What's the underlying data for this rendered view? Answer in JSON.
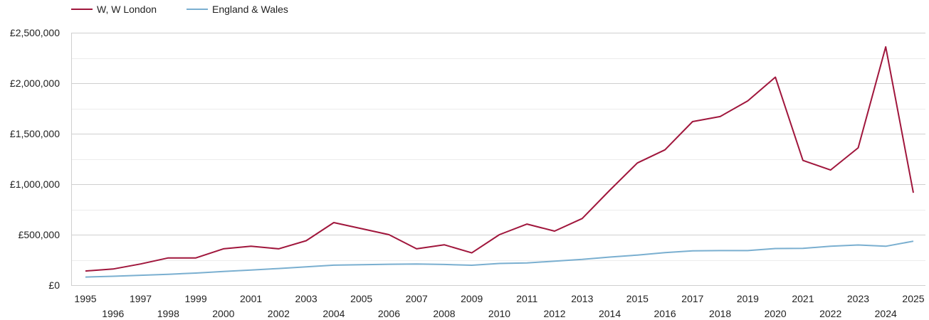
{
  "chart_data": {
    "type": "line",
    "title": "",
    "xlabel": "",
    "ylabel": "",
    "grid": true,
    "legend_position": "top-left",
    "x": [
      1995,
      1996,
      1997,
      1998,
      1999,
      2000,
      2001,
      2002,
      2003,
      2004,
      2005,
      2006,
      2007,
      2008,
      2009,
      2010,
      2011,
      2012,
      2013,
      2014,
      2015,
      2016,
      2017,
      2018,
      2019,
      2020,
      2021,
      2022,
      2023,
      2024,
      2025
    ],
    "x_tick_labels": [
      "1995",
      "1996",
      "1997",
      "1998",
      "1999",
      "2000",
      "2001",
      "2002",
      "2003",
      "2004",
      "2005",
      "2006",
      "2007",
      "2008",
      "2009",
      "2010",
      "2011",
      "2012",
      "2013",
      "2014",
      "2015",
      "2016",
      "2017",
      "2018",
      "2019",
      "2020",
      "2021",
      "2022",
      "2023",
      "2024",
      "2025"
    ],
    "xlim": [
      1995,
      2025
    ],
    "ylim": [
      0,
      2500000
    ],
    "y_ticks": [
      0,
      500000,
      1000000,
      1500000,
      2000000,
      2500000
    ],
    "y_tick_labels": [
      "£0",
      "£500,000",
      "£1,000,000",
      "£1,500,000",
      "£2,000,000",
      "£2,500,000"
    ],
    "series": [
      {
        "name": "W, W London",
        "color": "#a0163c",
        "values": [
          140000,
          160000,
          210000,
          270000,
          270000,
          360000,
          385000,
          360000,
          440000,
          620000,
          560000,
          500000,
          360000,
          400000,
          320000,
          500000,
          605000,
          535000,
          660000,
          940000,
          1210000,
          1340000,
          1620000,
          1670000,
          1825000,
          2060000,
          1235000,
          1140000,
          1360000,
          2360000,
          915000
        ]
      },
      {
        "name": "England & Wales",
        "color": "#7aafd0",
        "values": [
          80000,
          88000,
          98000,
          108000,
          120000,
          135000,
          150000,
          165000,
          182000,
          198000,
          203000,
          207000,
          210000,
          205000,
          197000,
          215000,
          220000,
          238000,
          255000,
          278000,
          298000,
          322000,
          340000,
          342000,
          342000,
          363000,
          365000,
          385000,
          398000,
          385000,
          435000
        ]
      }
    ]
  }
}
